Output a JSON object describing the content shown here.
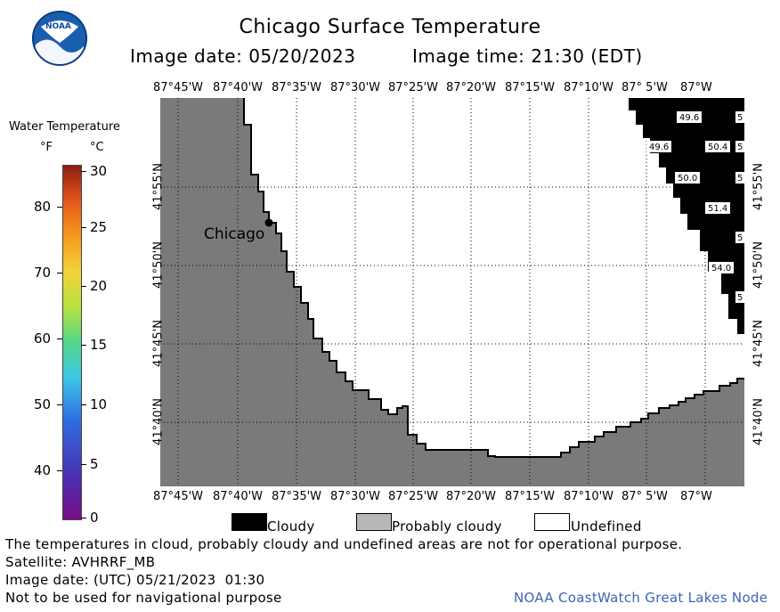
{
  "header": {
    "title": "Chicago Surface Temperature",
    "image_date_label": "Image date: 05/20/2023",
    "image_time_label": "Image time: 21:30 (EDT)",
    "logo_text": "NOAA"
  },
  "scale": {
    "title": "Water Temperature",
    "f_label": "°F",
    "c_label": "°C",
    "f_ticks": [
      "80",
      "70",
      "60",
      "50",
      "40"
    ],
    "c_ticks": [
      "30",
      "25",
      "20",
      "15",
      "10",
      "5",
      "0"
    ]
  },
  "map": {
    "lon_labels_top": [
      "87°45'W",
      "87°40'W",
      "87°35'W",
      "87°30'W",
      "87°25'W",
      "87°20'W",
      "87°15'W",
      "87°10'W",
      "87° 5'W",
      "87°W"
    ],
    "lon_labels_bottom": [
      "87°45'W",
      "87°40'W",
      "87°35'W",
      "87°30'W",
      "87°25'W",
      "87°20'W",
      "87°15'W",
      "87°10'W",
      "87° 5'W",
      "87°W"
    ],
    "lat_labels": [
      "41°55'N",
      "41°50'N",
      "41°45'N",
      "41°40'N"
    ],
    "city": "Chicago",
    "cloud_values": [
      "49.6",
      "49.6",
      "50.4",
      "50.0",
      "51.4",
      "54.0"
    ],
    "edge_values": [
      "5",
      "5",
      "5",
      "5",
      "5"
    ],
    "colors": {
      "land": "#7a7a7a",
      "cloud": "#000000",
      "undefined": "#ffffff"
    }
  },
  "legend": {
    "cloudy": "Cloudy",
    "probably_cloudy": "Probably cloudy",
    "undefined": "Undefined"
  },
  "footer": {
    "disclaimer": "The temperatures in cloud, probably cloudy and undefined areas are not for operational purpose.",
    "satellite": "Satellite: AVHRRF_MB",
    "utc_date": "Image date: (UTC) 05/21/2023  01:30",
    "nav_warning": "Not to be used for navigational purpose",
    "credit": "NOAA CoastWatch Great Lakes Node",
    "credit_color": "#3c64b4"
  }
}
